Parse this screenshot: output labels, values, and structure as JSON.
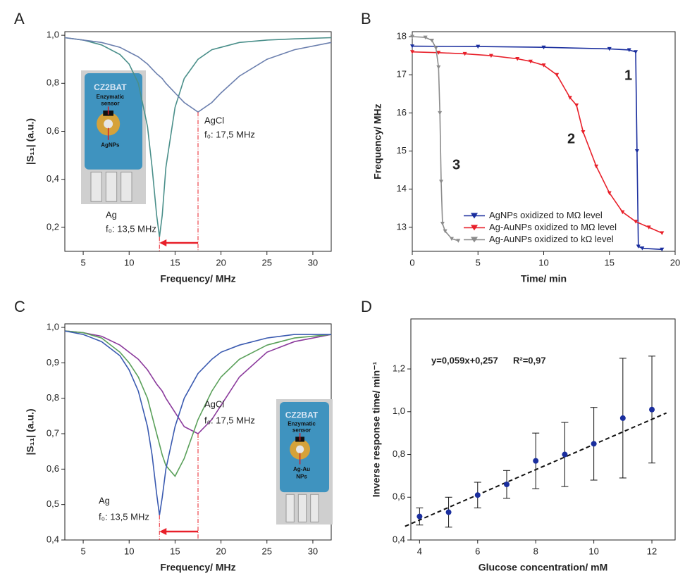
{
  "chart_data": [
    {
      "panel": "A",
      "type": "line",
      "x_label": "Frequency/ MHz",
      "y_label": "|S₁₁| (a.u.)",
      "x": [
        3,
        5,
        7,
        9,
        10,
        11,
        12,
        12.5,
        13,
        13.3,
        13.6,
        14,
        15,
        16,
        17.5,
        19,
        20,
        22,
        25,
        28,
        32
      ],
      "series": [
        {
          "color": "#4a8f8a",
          "values": [
            0.99,
            0.98,
            0.96,
            0.92,
            0.88,
            0.8,
            0.62,
            0.45,
            0.25,
            0.16,
            0.25,
            0.45,
            0.7,
            0.82,
            0.9,
            0.94,
            0.95,
            0.97,
            0.98,
            0.985,
            0.99
          ]
        },
        {
          "color": "#6b7fae",
          "values": [
            0.99,
            0.98,
            0.97,
            0.95,
            0.93,
            0.91,
            0.88,
            0.86,
            0.84,
            0.83,
            0.82,
            0.8,
            0.76,
            0.72,
            0.68,
            0.72,
            0.76,
            0.83,
            0.9,
            0.94,
            0.97
          ]
        }
      ],
      "xlim": [
        3,
        32
      ],
      "ylim": [
        0.1,
        1.015
      ],
      "xticks": [
        5,
        10,
        15,
        20,
        25,
        30
      ],
      "yticks": [
        {
          "value": 0.2,
          "label": "0,2"
        },
        {
          "value": 0.4,
          "label": "0,4"
        },
        {
          "value": 0.6,
          "label": "0,6"
        },
        {
          "value": 0.8,
          "label": "0,8"
        },
        {
          "value": 1.0,
          "label": "1,0"
        }
      ],
      "annotations": [
        "Ag",
        "f₀: 13,5 MHz",
        "AgCl",
        "f₀: 17,5 MHz"
      ],
      "inset_labels": [
        "Enzymatic",
        "sensor",
        "AgNPs",
        "CZ2BAT"
      ],
      "arrow_color": "#e8202a"
    },
    {
      "panel": "B",
      "type": "line",
      "x_label": "Time/ min",
      "y_label": "Frequency/ MHz",
      "series": [
        {
          "name": "AgNPs oxidized to MΩ level",
          "color": "#1a2e9e",
          "x": [
            0,
            5,
            10,
            15,
            16.5,
            17,
            17.1,
            17.2,
            17.5,
            19
          ],
          "values": [
            17.75,
            17.74,
            17.72,
            17.68,
            17.65,
            17.6,
            15,
            12.5,
            12.45,
            12.42
          ]
        },
        {
          "name": "Ag-AuNPs oxidized to MΩ level",
          "color": "#e8202a",
          "x": [
            0,
            2,
            4,
            6,
            8,
            9,
            10,
            11,
            12,
            12.5,
            13,
            14,
            15,
            16,
            17,
            18,
            19
          ],
          "values": [
            17.6,
            17.58,
            17.55,
            17.5,
            17.42,
            17.35,
            17.25,
            17.0,
            16.4,
            16.2,
            15.5,
            14.6,
            13.9,
            13.4,
            13.15,
            13.0,
            12.85
          ]
        },
        {
          "name": "Ag-AuNPs oxidized to kΩ level",
          "color": "#8c8c8c",
          "x": [
            0,
            1,
            1.5,
            1.8,
            2,
            2.1,
            2.2,
            2.3,
            2.5,
            3,
            3.5
          ],
          "values": [
            18,
            17.98,
            17.9,
            17.7,
            17.2,
            16,
            14.2,
            13.1,
            12.9,
            12.7,
            12.65
          ]
        }
      ],
      "xlim": [
        0,
        20
      ],
      "ylim": [
        12.37,
        18.13
      ],
      "xticks": [
        0,
        5,
        10,
        15,
        20
      ],
      "yticks": [
        13,
        14,
        15,
        16,
        17,
        18
      ],
      "annotations": [
        "1",
        "2",
        "3"
      ],
      "legend": "lower right"
    },
    {
      "panel": "C",
      "type": "line",
      "x_label": "Frequency/ MHz",
      "y_label": "|S₁₁| (a.u.)",
      "x": [
        3,
        5,
        7,
        9,
        10,
        11,
        12,
        12.5,
        13,
        13.3,
        13.6,
        14,
        15,
        16,
        17.5,
        19,
        20,
        22,
        25,
        28,
        32
      ],
      "series": [
        {
          "color": "#8b3a9c",
          "values": [
            0.99,
            0.985,
            0.975,
            0.95,
            0.93,
            0.91,
            0.88,
            0.86,
            0.84,
            0.83,
            0.82,
            0.8,
            0.76,
            0.72,
            0.7,
            0.74,
            0.78,
            0.86,
            0.93,
            0.96,
            0.98
          ]
        },
        {
          "color": "#5aa05a",
          "values": [
            0.99,
            0.985,
            0.97,
            0.93,
            0.9,
            0.86,
            0.8,
            0.75,
            0.7,
            0.67,
            0.64,
            0.61,
            0.58,
            0.63,
            0.74,
            0.82,
            0.86,
            0.91,
            0.95,
            0.97,
            0.98
          ]
        },
        {
          "color": "#3a5ab0",
          "values": [
            0.99,
            0.98,
            0.96,
            0.92,
            0.88,
            0.82,
            0.72,
            0.64,
            0.53,
            0.47,
            0.52,
            0.6,
            0.72,
            0.8,
            0.87,
            0.91,
            0.93,
            0.95,
            0.97,
            0.98,
            0.98
          ]
        }
      ],
      "xlim": [
        3,
        32
      ],
      "ylim": [
        0.4,
        1.01
      ],
      "xticks": [
        5,
        10,
        15,
        20,
        25,
        30
      ],
      "yticks": [
        {
          "value": 0.4,
          "label": "0,4"
        },
        {
          "value": 0.5,
          "label": "0,5"
        },
        {
          "value": 0.6,
          "label": "0,6"
        },
        {
          "value": 0.7,
          "label": "0,7"
        },
        {
          "value": 0.8,
          "label": "0,8"
        },
        {
          "value": 0.9,
          "label": "0,9"
        },
        {
          "value": 1.0,
          "label": "1,0"
        }
      ],
      "annotations": [
        "Ag",
        "f₀: 13,5 MHz",
        "AgCl",
        "f₀: 17,5 MHz"
      ],
      "inset_labels": [
        "Enzymatic",
        "sensor",
        "Ag-Au",
        "NPs",
        "CZ2BAT"
      ],
      "arrow_color": "#e8202a"
    },
    {
      "panel": "D",
      "type": "scatter",
      "x_label": "Glucose concentration/ mM",
      "y_label": "Inverse response time/ min⁻¹",
      "x": [
        4,
        5,
        6,
        7,
        8,
        9,
        10,
        11,
        12
      ],
      "values": [
        0.51,
        0.53,
        0.61,
        0.66,
        0.77,
        0.8,
        0.85,
        0.97,
        1.01
      ],
      "errors": [
        0.04,
        0.07,
        0.06,
        0.065,
        0.13,
        0.15,
        0.17,
        0.28,
        0.25
      ],
      "color": "#1a2e9e",
      "fit_line": {
        "x": [
          3.5,
          12.5
        ],
        "values": [
          0.464,
          0.994
        ]
      },
      "xlim": [
        3.7,
        12.8
      ],
      "ylim": [
        0.4,
        1.434
      ],
      "xticks": [
        4,
        6,
        8,
        10,
        12
      ],
      "yticks": [
        {
          "value": 0.4,
          "label": "0,4"
        },
        {
          "value": 0.6,
          "label": "0,6"
        },
        {
          "value": 0.8,
          "label": "0,8"
        },
        {
          "value": 1.0,
          "label": "1,0"
        },
        {
          "value": 1.2,
          "label": "1,2"
        }
      ],
      "annotations": [
        "y=0,059x+0,257",
        "R²=0,97"
      ]
    }
  ]
}
